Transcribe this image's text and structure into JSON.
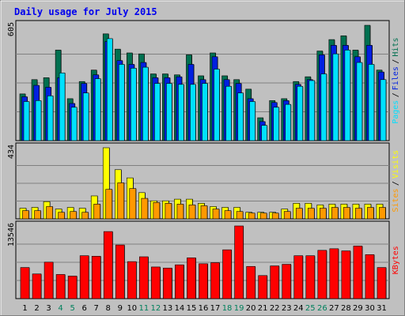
{
  "chart_data": {
    "type": "bar",
    "title": "Daily usage for July 2015",
    "days": [
      "1",
      "2",
      "3",
      "4",
      "5",
      "6",
      "7",
      "8",
      "9",
      "10",
      "11",
      "12",
      "13",
      "14",
      "15",
      "16",
      "17",
      "18",
      "19",
      "20",
      "21",
      "22",
      "23",
      "24",
      "25",
      "26",
      "27",
      "28",
      "29",
      "30",
      "31"
    ],
    "weekend_days": [
      4,
      5,
      11,
      12,
      18,
      19,
      25,
      26
    ],
    "colors": {
      "hits": "#007050",
      "files": "#0020e0",
      "pages": "#00e0ff",
      "visits": "#ffff00",
      "sites": "#ff9900",
      "kbytes": "#ff0000",
      "title": "#0000ee",
      "weekend_label": "#00805c"
    },
    "panels": [
      {
        "name": "requests",
        "ymax_label": "605",
        "ylim": [
          0,
          605
        ],
        "legend": [
          "Pages",
          "/",
          "Files",
          "/",
          "Hits"
        ],
        "series": [
          {
            "name": "Hits",
            "values": [
              245,
              320,
              330,
              475,
              220,
              310,
              370,
              560,
              480,
              460,
              455,
              350,
              350,
              345,
              450,
              340,
              460,
              340,
              320,
              270,
              120,
              210,
              220,
              310,
              335,
              470,
              530,
              550,
              475,
              610,
              370
            ]
          },
          {
            "name": "Files",
            "values": [
              230,
              290,
              280,
              330,
              195,
              300,
              345,
              520,
              420,
              400,
              410,
              330,
              330,
              335,
              400,
              320,
              440,
              320,
              300,
              220,
              100,
              200,
              210,
              295,
              320,
              450,
              500,
              500,
              440,
              500,
              360
            ]
          },
          {
            "name": "Pages",
            "values": [
              205,
              210,
              235,
              355,
              175,
              250,
              325,
              535,
              400,
              380,
              385,
              300,
              300,
              295,
              295,
              300,
              375,
              285,
              250,
              205,
              80,
              175,
              190,
              285,
              315,
              350,
              455,
              475,
              410,
              400,
              320
            ]
          }
        ]
      },
      {
        "name": "visits",
        "ymax_label": "434",
        "ylim": [
          0,
          434
        ],
        "legend": [
          "Sites",
          "/",
          "Visits"
        ],
        "series": [
          {
            "name": "Visits",
            "values": [
              65,
              70,
              105,
              60,
              70,
              65,
              140,
              434,
              300,
              250,
              160,
              110,
              110,
              120,
              120,
              95,
              75,
              70,
              70,
              40,
              40,
              40,
              60,
              95,
              95,
              85,
              90,
              90,
              90,
              90,
              90
            ]
          },
          {
            "name": "Sites",
            "values": [
              50,
              50,
              75,
              40,
              45,
              40,
              90,
              180,
              220,
              185,
              125,
              100,
              95,
              90,
              85,
              80,
              60,
              50,
              45,
              35,
              35,
              35,
              45,
              65,
              65,
              65,
              70,
              70,
              65,
              70,
              70
            ]
          }
        ]
      },
      {
        "name": "volume",
        "ymax_label": "13546",
        "ylim": [
          0,
          13546
        ],
        "legend": [
          "KBytes"
        ],
        "series": [
          {
            "name": "KBytes",
            "values": [
              5800,
              4600,
              6800,
              4500,
              4200,
              8000,
              7900,
              12500,
              10000,
              6900,
              7800,
              5900,
              5700,
              6300,
              7600,
              6500,
              6700,
              9100,
              13600,
              6000,
              4300,
              6100,
              6400,
              8000,
              8000,
              9000,
              9300,
              8900,
              9800,
              8200,
              5800
            ]
          }
        ]
      }
    ]
  }
}
